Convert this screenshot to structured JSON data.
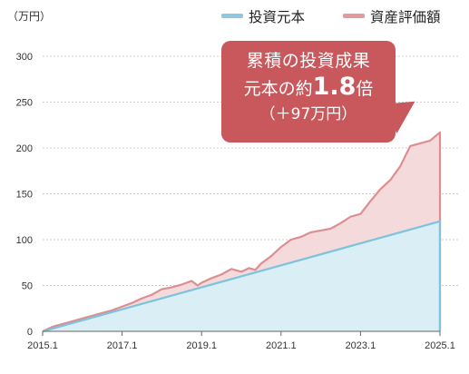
{
  "unit_label": "（万円）",
  "legend": [
    {
      "label": "投資元本",
      "color": "#8ec9df"
    },
    {
      "label": "資産評価額",
      "color": "#e29a9c"
    }
  ],
  "callout": {
    "line1": "累積の投資成果",
    "line2_prefix": "元本の約",
    "line2_multiplier": "1.8",
    "line2_suffix": "倍",
    "line3": "（＋97万円）",
    "color": "#c9585d"
  },
  "colors": {
    "principal_line": "#7cc3dd",
    "principal_fill": "#d9eef5",
    "value_line": "#dc8f92",
    "value_fill": "#f5dadb",
    "grid": "#bfbfbf",
    "axis": "#666666"
  },
  "chart_data": {
    "type": "area",
    "x_label": "",
    "y_label": "",
    "ylim": [
      0,
      300
    ],
    "yticks": [
      0,
      50,
      100,
      150,
      200,
      250,
      300
    ],
    "xlim": [
      2015.0,
      2025.0
    ],
    "xticks": [
      {
        "value": 2015.0,
        "label": "2015.1"
      },
      {
        "value": 2017.0,
        "label": "2017.1"
      },
      {
        "value": 2019.0,
        "label": "2019.1"
      },
      {
        "value": 2021.0,
        "label": "2021.1"
      },
      {
        "value": 2023.0,
        "label": "2023.1"
      },
      {
        "value": 2025.0,
        "label": "2025.1"
      }
    ],
    "grid": "horizontal dashed",
    "legend_position": "top-right",
    "series": [
      {
        "name": "投資元本",
        "x": [
          2015.0,
          2025.0
        ],
        "values": [
          0,
          120
        ]
      },
      {
        "name": "資産評価額",
        "x": [
          2015.0,
          2015.25,
          2015.5,
          2015.75,
          2016.0,
          2016.25,
          2016.5,
          2016.75,
          2017.0,
          2017.25,
          2017.5,
          2017.75,
          2018.0,
          2018.25,
          2018.5,
          2018.75,
          2018.9,
          2019.0,
          2019.25,
          2019.5,
          2019.75,
          2020.0,
          2020.2,
          2020.35,
          2020.5,
          2020.75,
          2021.0,
          2021.25,
          2021.5,
          2021.75,
          2022.0,
          2022.25,
          2022.5,
          2022.75,
          2023.0,
          2023.25,
          2023.5,
          2023.75,
          2024.0,
          2024.25,
          2024.5,
          2024.75,
          2025.0
        ],
        "values": [
          0,
          5,
          8,
          11,
          14,
          17,
          20,
          23,
          27,
          31,
          36,
          40,
          46,
          48,
          51,
          55,
          50,
          53,
          58,
          62,
          68,
          65,
          69,
          67,
          74,
          82,
          92,
          100,
          103,
          108,
          110,
          112,
          118,
          125,
          128,
          142,
          155,
          165,
          180,
          202,
          205,
          208,
          217
        ]
      }
    ]
  }
}
